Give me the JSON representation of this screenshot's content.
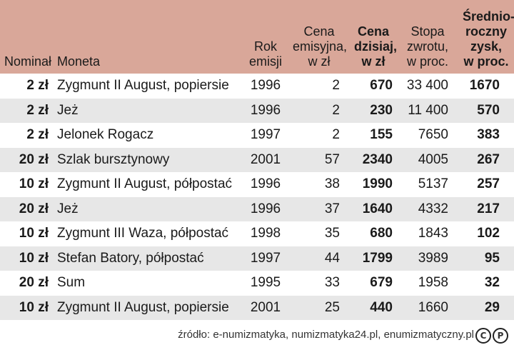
{
  "table": {
    "headers": {
      "nominal": "Nominał",
      "moneta": "Moneta",
      "rok": "Rok\nemisji",
      "cena_emisyjna": "Cena\nemisyjna,\nw zł",
      "cena_dzisiaj": "Cena\ndzisiaj,\nw zł",
      "stopa_zwrotu": "Stopa\nzwrotu,\nw proc.",
      "zysk": "Średnio-\nroczny\nzysk,\nw proc."
    },
    "rows": [
      {
        "nominal": "2 zł",
        "moneta": "Zygmunt II August, popiersie",
        "rok": "1996",
        "cena_emisyjna": "2",
        "cena_dzisiaj": "670",
        "stopa_zwrotu": "33 400",
        "zysk": "1670"
      },
      {
        "nominal": "2 zł",
        "moneta": "Jeż",
        "rok": "1996",
        "cena_emisyjna": "2",
        "cena_dzisiaj": "230",
        "stopa_zwrotu": "11 400",
        "zysk": "570"
      },
      {
        "nominal": "2 zł",
        "moneta": "Jelonek Rogacz",
        "rok": "1997",
        "cena_emisyjna": "2",
        "cena_dzisiaj": "155",
        "stopa_zwrotu": "7650",
        "zysk": "383"
      },
      {
        "nominal": "20 zł",
        "moneta": "Szlak bursztynowy",
        "rok": "2001",
        "cena_emisyjna": "57",
        "cena_dzisiaj": "2340",
        "stopa_zwrotu": "4005",
        "zysk": "267"
      },
      {
        "nominal": "10 zł",
        "moneta": "Zygmunt II August, półpostać",
        "rok": "1996",
        "cena_emisyjna": "38",
        "cena_dzisiaj": "1990",
        "stopa_zwrotu": "5137",
        "zysk": "257"
      },
      {
        "nominal": "20 zł",
        "moneta": "Jeż",
        "rok": "1996",
        "cena_emisyjna": "37",
        "cena_dzisiaj": "1640",
        "stopa_zwrotu": "4332",
        "zysk": "217"
      },
      {
        "nominal": "10 zł",
        "moneta": " Zygmunt III Waza, półpostać",
        "rok": "1998",
        "cena_emisyjna": "35",
        "cena_dzisiaj": "680",
        "stopa_zwrotu": "1843",
        "zysk": "102"
      },
      {
        "nominal": "10 zł",
        "moneta": "Stefan Batory, półpostać",
        "rok": "1997",
        "cena_emisyjna": "44",
        "cena_dzisiaj": "1799",
        "stopa_zwrotu": "3989",
        "zysk": "95"
      },
      {
        "nominal": "20 zł",
        "moneta": "Sum",
        "rok": "1995",
        "cena_emisyjna": "33",
        "cena_dzisiaj": "679",
        "stopa_zwrotu": "1958",
        "zysk": "32"
      },
      {
        "nominal": "10 zł",
        "moneta": "Zygmunt II August, popiersie",
        "rok": "2001",
        "cena_emisyjna": "25",
        "cena_dzisiaj": "440",
        "stopa_zwrotu": "1660",
        "zysk": "29"
      }
    ]
  },
  "footer": {
    "source": "źródło: e-numizmatyka, numizmatyka24.pl, enumizmatyczny.pl",
    "badge_c": "C",
    "badge_p": "P"
  },
  "colors": {
    "header_bg": "#d9a799",
    "row_alt_bg": "#e7e7e7"
  }
}
